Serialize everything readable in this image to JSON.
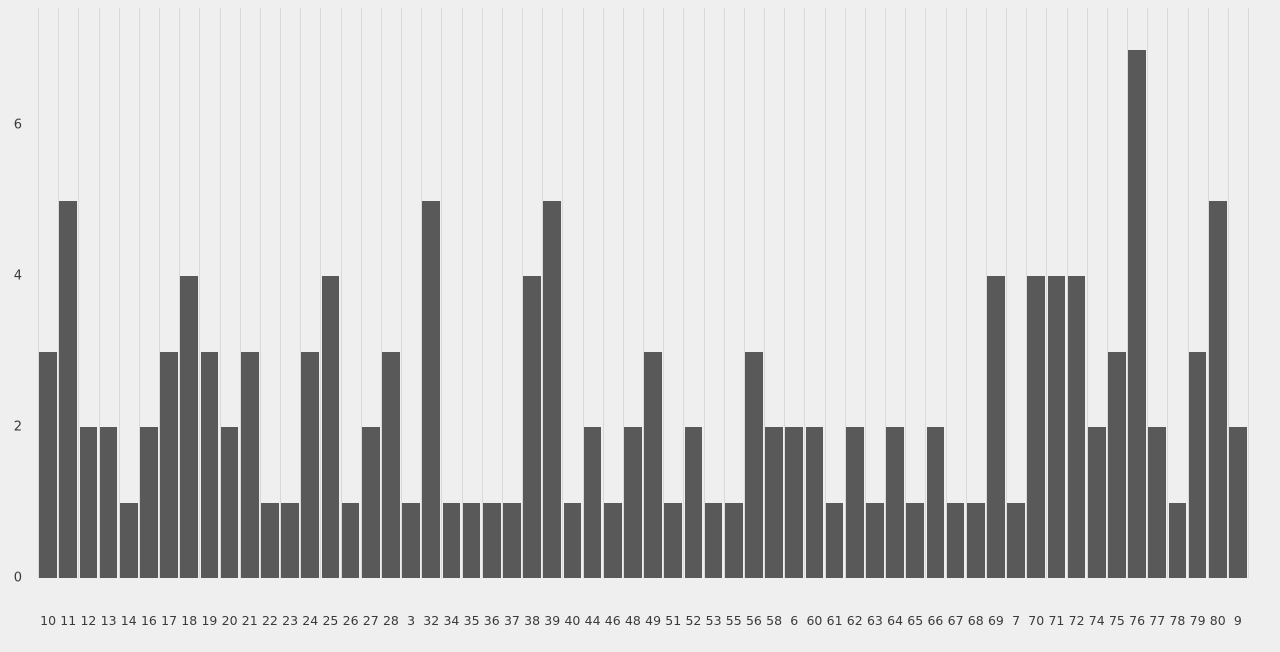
{
  "chart_data": {
    "type": "bar",
    "title": "",
    "xlabel": "",
    "ylabel": "",
    "categories": [
      "10",
      "11",
      "12",
      "13",
      "14",
      "16",
      "17",
      "18",
      "19",
      "20",
      "21",
      "22",
      "23",
      "24",
      "25",
      "26",
      "27",
      "28",
      "3",
      "32",
      "34",
      "35",
      "36",
      "37",
      "38",
      "39",
      "40",
      "44",
      "46",
      "48",
      "49",
      "51",
      "52",
      "53",
      "55",
      "56",
      "58",
      "6",
      "60",
      "61",
      "62",
      "63",
      "64",
      "65",
      "66",
      "67",
      "68",
      "69",
      "7",
      "70",
      "71",
      "72",
      "74",
      "75",
      "76",
      "77",
      "78",
      "79",
      "80",
      "9"
    ],
    "values": [
      3,
      5,
      2,
      2,
      1,
      2,
      3,
      4,
      3,
      2,
      3,
      1,
      1,
      3,
      4,
      1,
      2,
      3,
      1,
      5,
      1,
      1,
      1,
      1,
      4,
      5,
      1,
      2,
      1,
      2,
      3,
      1,
      2,
      1,
      1,
      3,
      2,
      2,
      2,
      1,
      2,
      1,
      2,
      1,
      2,
      1,
      1,
      4,
      1,
      4,
      4,
      4,
      2,
      3,
      7,
      2,
      1,
      3,
      5,
      2
    ],
    "yticks": [
      0,
      2,
      4,
      6
    ],
    "ylim": [
      0,
      7.5
    ],
    "grid": "vertical-only",
    "legend": "none",
    "colors": {
      "bar": "#595959",
      "background": "#efefef",
      "gridline": "#d9d9d9",
      "tick_text": "#3a3a3a"
    }
  }
}
